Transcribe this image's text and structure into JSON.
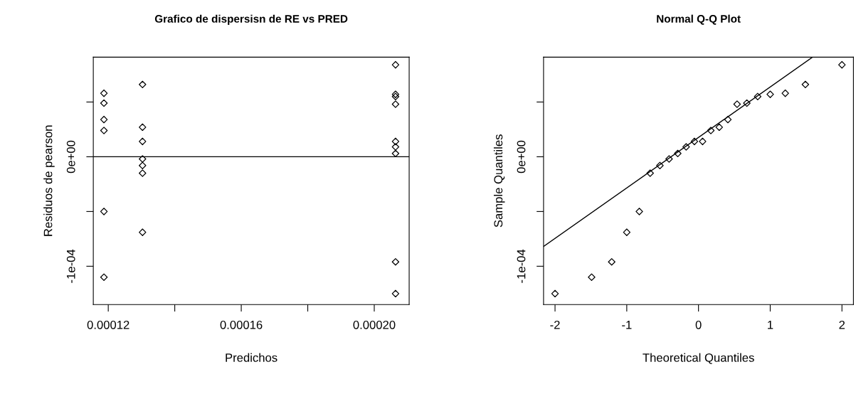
{
  "chart_data": [
    {
      "type": "scatter",
      "title": "Grafico de dispersisn de RE vs PRED",
      "xlabel": "Predichos",
      "ylabel": "Residuos de pearson",
      "marker": "diamond",
      "xlim": [
        0.0001155,
        0.0002105
      ],
      "xticks": [
        {
          "value": 0.00012,
          "label": "0.00012"
        },
        {
          "value": 0.00014,
          "label": null
        },
        {
          "value": 0.00016,
          "label": "0.00016"
        },
        {
          "value": 0.00018,
          "label": null
        },
        {
          "value": 0.0002,
          "label": "0.00020"
        }
      ],
      "ylim": [
        -0.000135,
        9.1e-05
      ],
      "yticks": [
        {
          "value": -0.0001,
          "label": "-1e-04"
        },
        {
          "value": -5e-05,
          "label": null
        },
        {
          "value": 0,
          "label": "0e+00"
        },
        {
          "value": 5e-05,
          "label": null
        }
      ],
      "ref_lines": [
        {
          "axis": "y",
          "value": 0,
          "color": "#000000"
        }
      ],
      "series": [
        {
          "color": "#000000",
          "x": [
            0.0001187,
            0.0001187,
            0.0001187,
            0.0001187,
            0.0001187,
            0.0001187,
            0.0001303,
            0.0001303,
            0.0001303,
            0.0001303,
            0.0001303,
            0.0001303,
            0.0001303,
            0.0002064,
            0.0002064,
            0.0002064,
            0.0002064,
            0.0002064,
            0.0002064,
            0.0002064,
            0.0002064,
            0.0002064
          ],
          "values": [
            5.8e-05,
            4.9e-05,
            3.4e-05,
            2.4e-05,
            -5e-05,
            -0.00011,
            6.6e-05,
            2.7e-05,
            1.4e-05,
            -2e-06,
            -8e-06,
            -1.5e-05,
            -6.9e-05,
            8.4e-05,
            5.7e-05,
            5.5e-05,
            4.8e-05,
            1.4e-05,
            9e-06,
            3e-06,
            -9.6e-05,
            -0.000125
          ]
        }
      ]
    },
    {
      "type": "scatter",
      "title": "Normal Q-Q Plot",
      "xlabel": "Theoretical Quantiles",
      "ylabel": "Sample Quantiles",
      "xlim": [
        -2.16,
        2.16
      ],
      "xticks": [
        -2,
        -1,
        0,
        1,
        2
      ],
      "ylim": [
        -0.000135,
        9.1e-05
      ],
      "yticks": [
        {
          "value": -0.0001,
          "label": "-1e-04"
        },
        {
          "value": -5e-05,
          "label": null
        },
        {
          "value": 0,
          "label": "0e+00"
        },
        {
          "value": 5e-05,
          "label": null
        }
      ],
      "series": [
        {
          "color": "#000000",
          "marker": "diamond",
          "x": [
            -2.0,
            -1.49,
            -1.21,
            -1.0,
            -0.825,
            -0.674,
            -0.538,
            -0.41,
            -0.289,
            -0.172,
            -0.057,
            0.057,
            0.172,
            0.289,
            0.41,
            0.538,
            0.674,
            0.825,
            1.0,
            1.21,
            1.49,
            2.0
          ],
          "values": [
            -0.000125,
            -0.00011,
            -9.6e-05,
            -6.9e-05,
            -5e-05,
            -1.5e-05,
            -8e-06,
            -2e-06,
            3e-06,
            9e-06,
            1.4e-05,
            1.4e-05,
            2.4e-05,
            2.7e-05,
            3.4e-05,
            4.8e-05,
            4.9e-05,
            5.5e-05,
            5.7e-05,
            5.8e-05,
            6.6e-05,
            8.4e-05
          ]
        },
        {
          "type": "line",
          "marker": "none",
          "color": "#000000",
          "x": [
            -2.16,
            1.59
          ],
          "values": [
            -8.2e-05,
            9.1e-05
          ]
        }
      ]
    }
  ]
}
